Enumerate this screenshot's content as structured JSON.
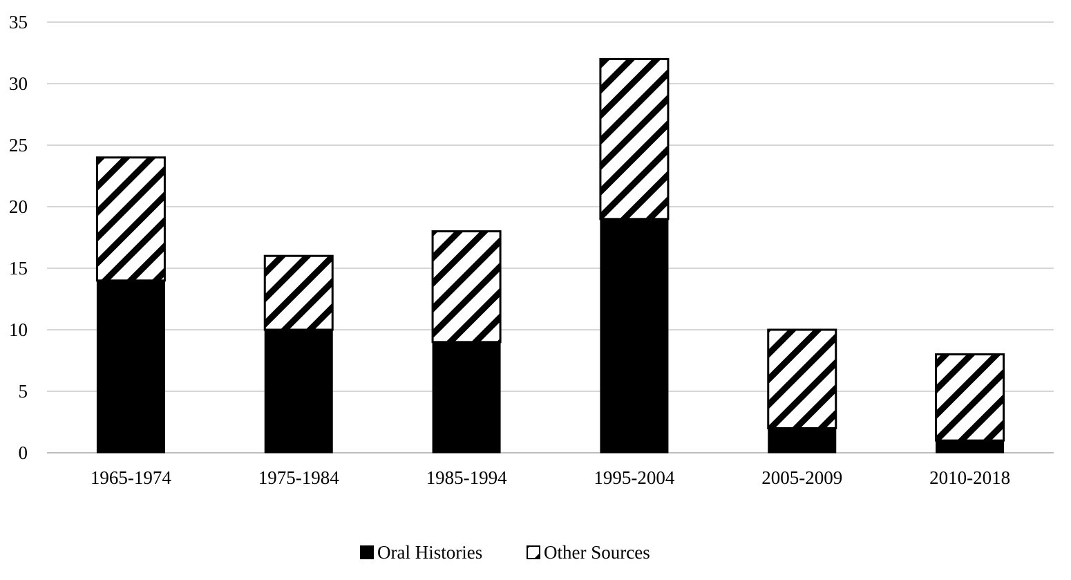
{
  "chart_data": {
    "type": "bar",
    "stacked": true,
    "categories": [
      "1965-1974",
      "1975-1984",
      "1985-1994",
      "1995-2004",
      "2005-2009",
      "2010-2018"
    ],
    "series": [
      {
        "name": "Oral Histories",
        "values": [
          14,
          10,
          9,
          19,
          2,
          1
        ],
        "fill": "solid",
        "color": "#000000"
      },
      {
        "name": "Other Sources",
        "values": [
          10,
          6,
          9,
          13,
          8,
          7
        ],
        "fill": "diagonal-hatch",
        "color": "#000000"
      }
    ],
    "title": "",
    "xlabel": "",
    "ylabel": "",
    "ylim": [
      0,
      35
    ],
    "yticks": [
      0,
      5,
      10,
      15,
      20,
      25,
      30,
      35
    ],
    "grid": true,
    "legend_position": "bottom-center"
  }
}
